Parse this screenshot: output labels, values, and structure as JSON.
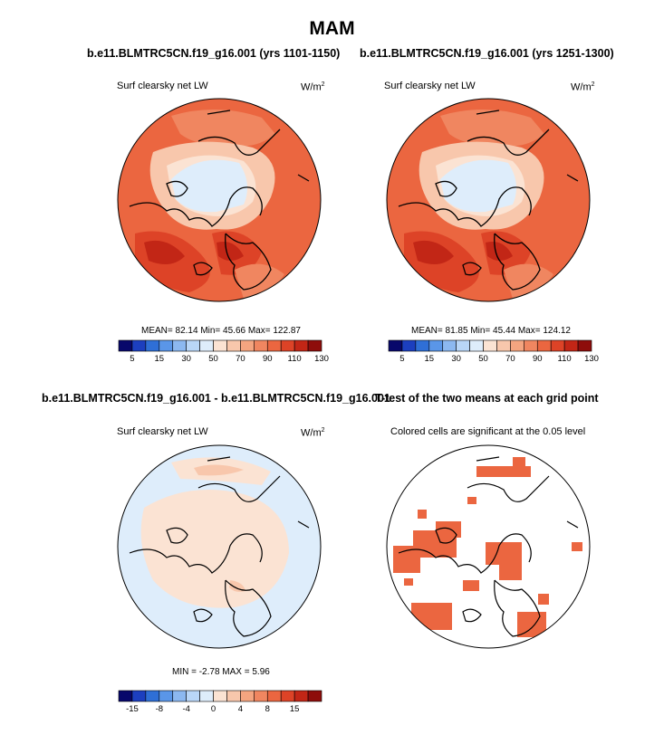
{
  "page_title": "MAM",
  "panels": [
    {
      "title": "b.e11.BLMTRC5CN.f19_g16.001 (yrs 1101-1150)",
      "left_label": "Surf clearsky net LW",
      "units_base": "W/m",
      "units_exp": "2",
      "stats": "MEAN= 82.14  Min= 45.66  Max= 122.87",
      "colorbar": {
        "colors": [
          "#08086b",
          "#1c3fbf",
          "#2f6fd6",
          "#5a96e8",
          "#8cb8f0",
          "#b9d6f7",
          "#deedfb",
          "#fbe3d3",
          "#f8c7ac",
          "#f4a580",
          "#f08660",
          "#eb6640",
          "#dd4327",
          "#c22616",
          "#8e0d0b"
        ],
        "tick_labels": [
          "5",
          "15",
          "30",
          "50",
          "70",
          "90",
          "110",
          "130"
        ]
      }
    },
    {
      "title": "b.e11.BLMTRC5CN.f19_g16.001 (yrs 1251-1300)",
      "left_label": "Surf clearsky net LW",
      "units_base": "W/m",
      "units_exp": "2",
      "stats": "MEAN= 81.85  Min= 45.44  Max= 124.12",
      "colorbar": {
        "colors": [
          "#08086b",
          "#1c3fbf",
          "#2f6fd6",
          "#5a96e8",
          "#8cb8f0",
          "#b9d6f7",
          "#deedfb",
          "#fbe3d3",
          "#f8c7ac",
          "#f4a580",
          "#f08660",
          "#eb6640",
          "#dd4327",
          "#c22616",
          "#8e0d0b"
        ],
        "tick_labels": [
          "5",
          "15",
          "30",
          "50",
          "70",
          "90",
          "110",
          "130"
        ]
      }
    },
    {
      "title": "b.e11.BLMTRC5CN.f19_g16.001 - b.e11.BLMTRC5CN.f19_g16.001",
      "left_label": "Surf clearsky net LW",
      "units_base": "W/m",
      "units_exp": "2",
      "stats": "MIN =  -2.78 MAX =   5.96",
      "colorbar": {
        "colors": [
          "#08086b",
          "#1c3fbf",
          "#2f6fd6",
          "#5a96e8",
          "#8cb8f0",
          "#b9d6f7",
          "#deedfb",
          "#fbe3d3",
          "#f8c7ac",
          "#f4a580",
          "#f08660",
          "#eb6640",
          "#dd4327",
          "#c22616",
          "#8e0d0b"
        ],
        "tick_labels": [
          "-15",
          "-8",
          "-4",
          "0",
          "4",
          "8",
          "15"
        ]
      }
    },
    {
      "title": "T-test of the two means at each grid point",
      "left_label": "Colored cells are significant at the 0.05 level"
    }
  ],
  "chart_data": [
    {
      "type": "heatmap",
      "title": "b.e11.BLMTRC5CN.f19_g16.001 (yrs 1101-1150)",
      "field": "Surf clearsky net LW",
      "units": "W/m2",
      "projection": "north polar stereographic",
      "mean": 82.14,
      "min": 45.66,
      "max": 122.87,
      "colorbar_levels": [
        5,
        15,
        30,
        50,
        70,
        90,
        110,
        130
      ]
    },
    {
      "type": "heatmap",
      "title": "b.e11.BLMTRC5CN.f19_g16.001 (yrs 1251-1300)",
      "field": "Surf clearsky net LW",
      "units": "W/m2",
      "projection": "north polar stereographic",
      "mean": 81.85,
      "min": 45.44,
      "max": 124.12,
      "colorbar_levels": [
        5,
        15,
        30,
        50,
        70,
        90,
        110,
        130
      ]
    },
    {
      "type": "heatmap",
      "title": "b.e11.BLMTRC5CN.f19_g16.001 - b.e11.BLMTRC5CN.f19_g16.001",
      "field": "Surf clearsky net LW",
      "units": "W/m2",
      "projection": "north polar stereographic",
      "min": -2.78,
      "max": 5.96,
      "colorbar_levels": [
        -15,
        -8,
        -4,
        0,
        4,
        8,
        15
      ]
    },
    {
      "type": "heatmap",
      "title": "T-test of the two means at each grid point",
      "note": "Colored cells are significant at the 0.05 level",
      "significance_level": 0.05,
      "projection": "north polar stereographic"
    }
  ]
}
